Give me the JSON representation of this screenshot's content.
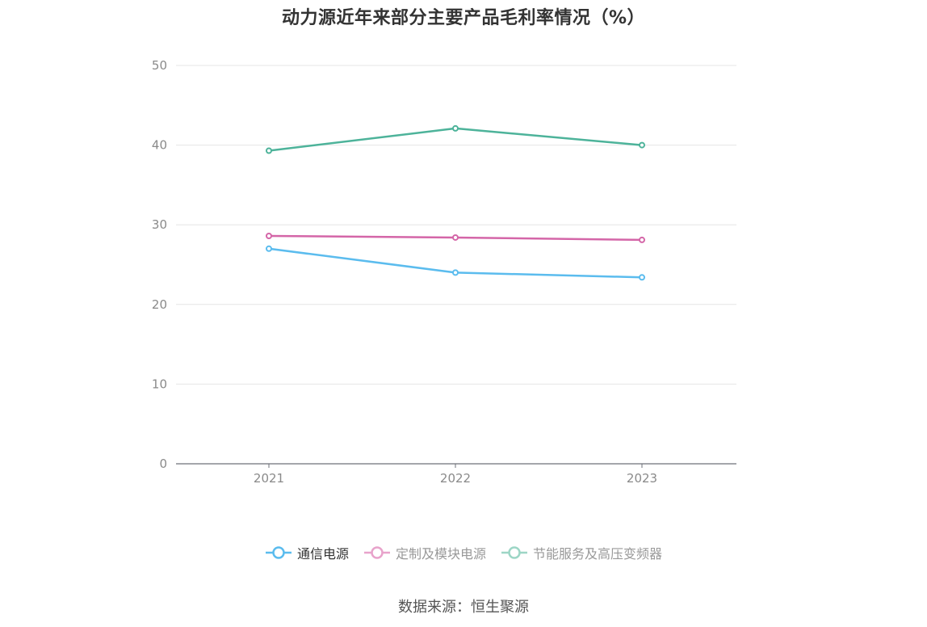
{
  "chart_data": {
    "type": "line",
    "title": "动力源近年来部分主要产品毛利率情况（%）",
    "categories": [
      "2021",
      "2022",
      "2023"
    ],
    "ylim": [
      0,
      50
    ],
    "yticks": [
      0,
      10,
      20,
      30,
      40,
      50
    ],
    "grid": true,
    "legend_position": "bottom",
    "series": [
      {
        "name": "通信电源",
        "color": "#5bbcee",
        "values": [
          27.0,
          24.0,
          23.4
        ]
      },
      {
        "name": "定制及模块电源",
        "color": "#d466a8",
        "values": [
          28.6,
          28.4,
          28.1
        ]
      },
      {
        "name": "节能服务及高压变频器",
        "color": "#4db39a",
        "values": [
          39.3,
          42.1,
          40.0
        ]
      }
    ]
  },
  "legend": {
    "items": [
      {
        "label": "通信电源",
        "color": "#5bbcee",
        "legend_color": "#5bbcee",
        "active": true
      },
      {
        "label": "定制及模块电源",
        "color": "#d466a8",
        "legend_color": "#e8a3cb",
        "active": false
      },
      {
        "label": "节能服务及高压变频器",
        "color": "#4db39a",
        "legend_color": "#9dd6c6",
        "active": false
      }
    ]
  },
  "source": "数据来源：恒生聚源"
}
